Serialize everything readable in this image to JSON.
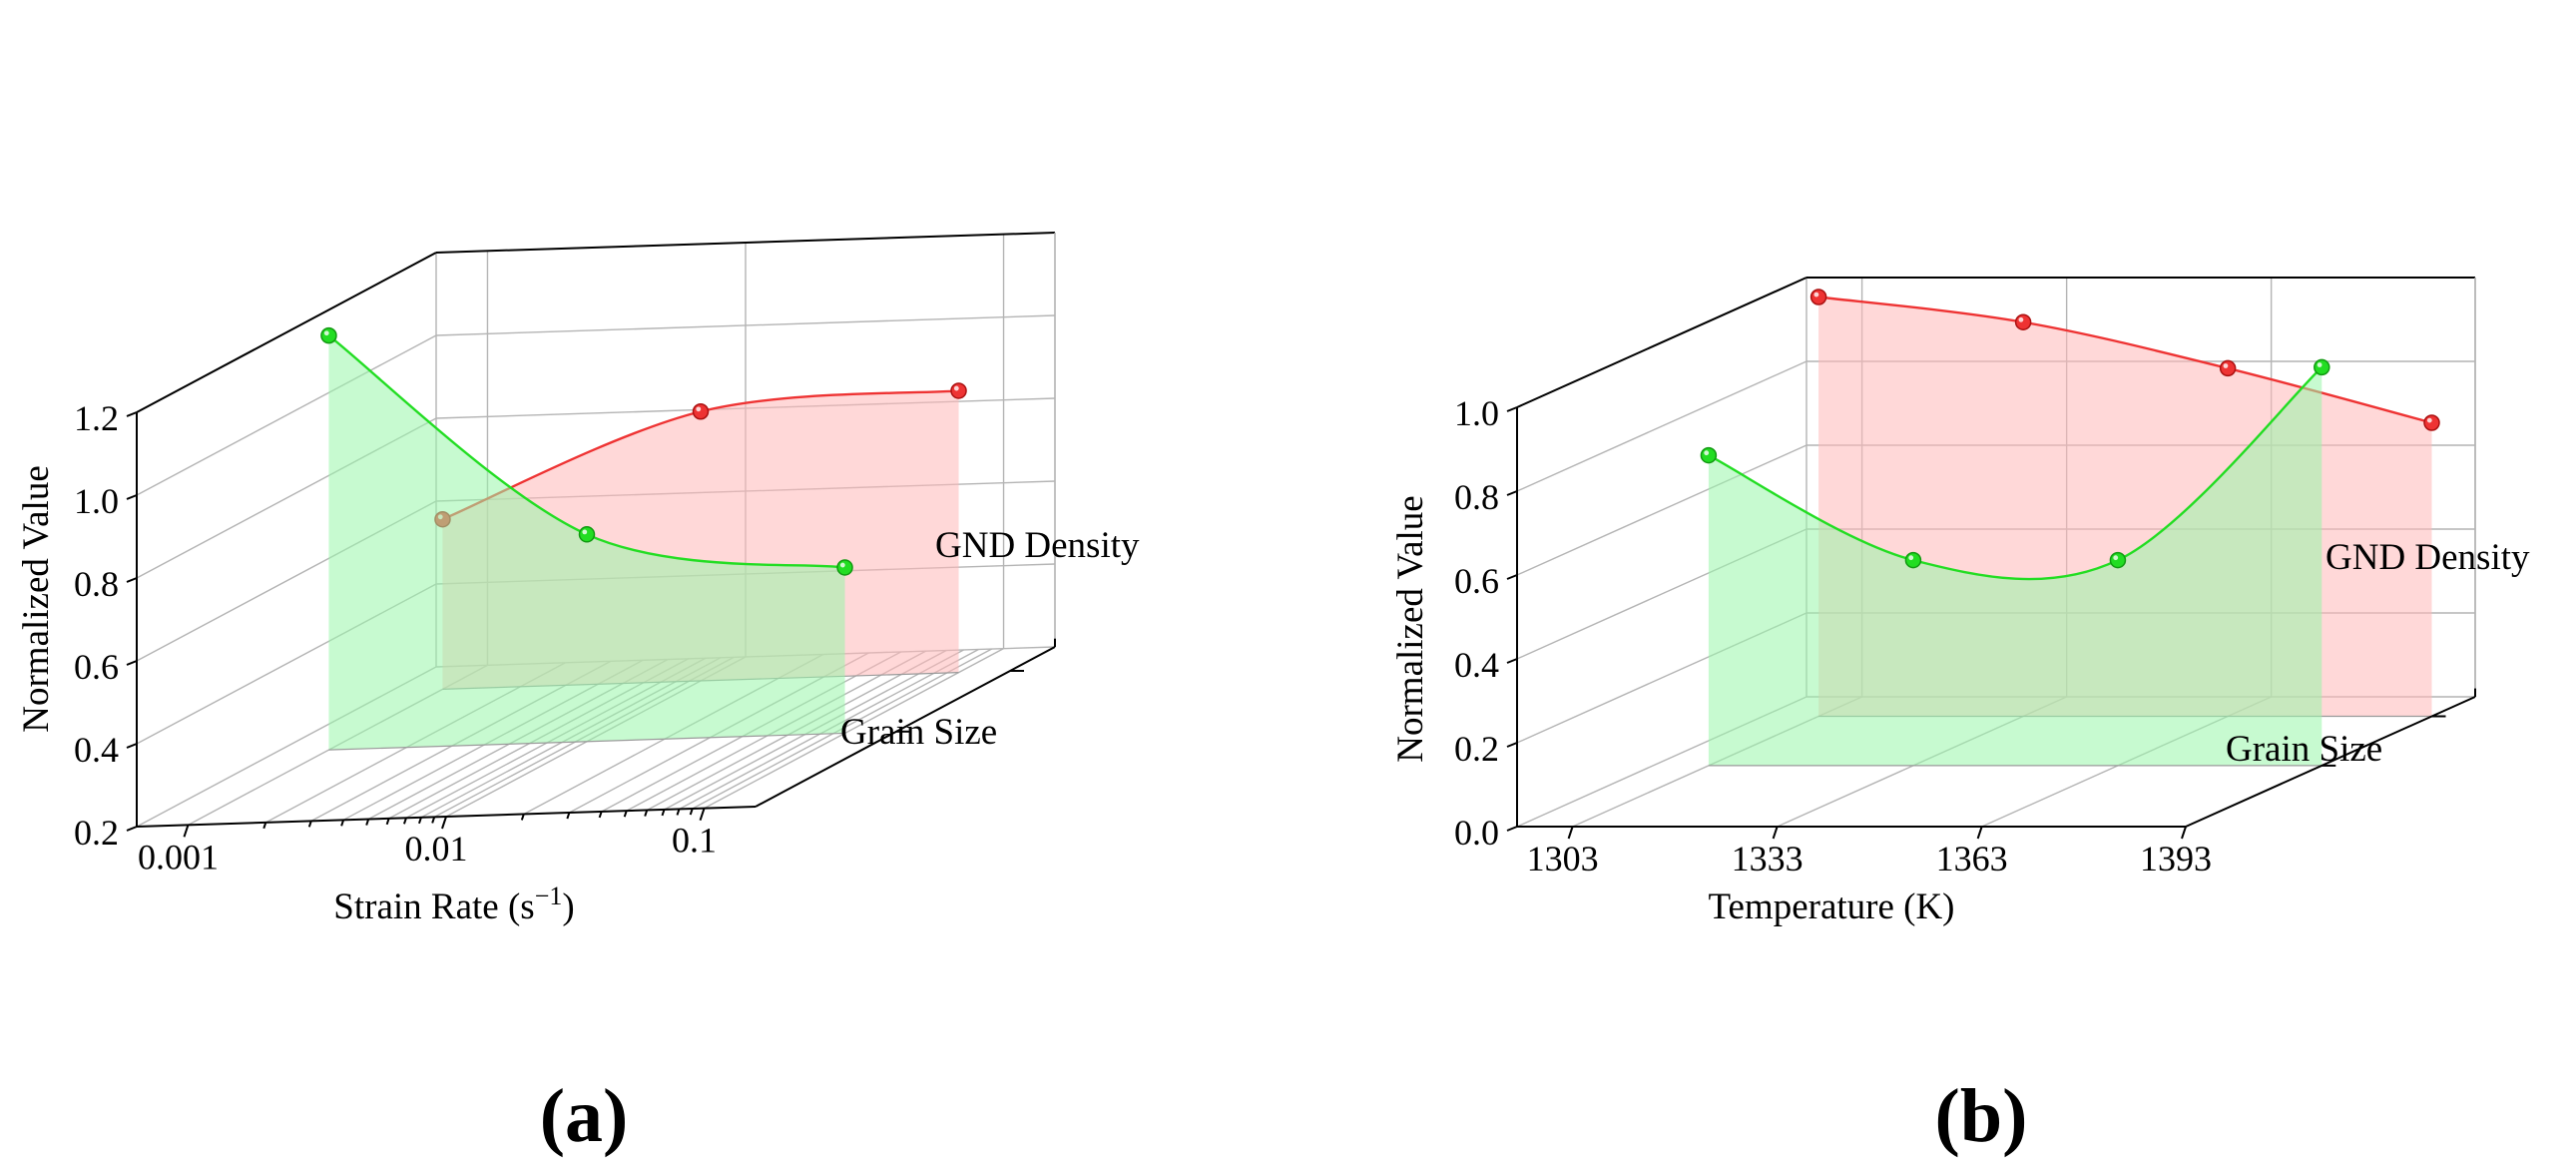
{
  "chart_data": [
    {
      "type": "line",
      "panel_label": "(a)",
      "title": "",
      "xlabel": "Strain Rate (s",
      "xlabel_sup": "−1",
      "xlabel_tail": ")",
      "ylabel": "Normalized Value",
      "x_scale": "log",
      "x_ticks": [
        "0.001",
        "0.01",
        "0.1"
      ],
      "y_ticks": [
        "0.2",
        "0.4",
        "0.6",
        "0.8",
        "1.0",
        "1.2"
      ],
      "ylim": [
        0.2,
        1.2
      ],
      "depth_categories": [
        "Grain Size",
        "GND Density"
      ],
      "x": [
        0.001,
        0.01,
        0.1
      ],
      "series": [
        {
          "name": "Grain Size",
          "color": "#22dd22",
          "fill": "#99f5aa",
          "values": [
            1.2,
            0.7,
            0.6
          ]
        },
        {
          "name": "GND Density",
          "color": "#ee3333",
          "fill": "#ffb8b8",
          "values": [
            0.61,
            0.85,
            0.88
          ]
        }
      ]
    },
    {
      "type": "line",
      "panel_label": "(b)",
      "title": "",
      "xlabel": "Temperature (K)",
      "ylabel": "Normalized Value",
      "x_scale": "linear",
      "x_ticks": [
        "1303",
        "1333",
        "1363",
        "1393"
      ],
      "y_ticks": [
        "0.0",
        "0.2",
        "0.4",
        "0.6",
        "0.8",
        "1.0"
      ],
      "ylim": [
        0.0,
        1.0
      ],
      "depth_categories": [
        "Grain Size",
        "GND Density"
      ],
      "x": [
        1303,
        1333,
        1363,
        1393
      ],
      "series": [
        {
          "name": "Grain Size",
          "color": "#22dd22",
          "fill": "#99f5aa",
          "values": [
            0.74,
            0.49,
            0.49,
            0.95
          ]
        },
        {
          "name": "GND Density",
          "color": "#ee3333",
          "fill": "#ffb8b8",
          "values": [
            1.0,
            0.94,
            0.83,
            0.7
          ]
        }
      ]
    }
  ]
}
